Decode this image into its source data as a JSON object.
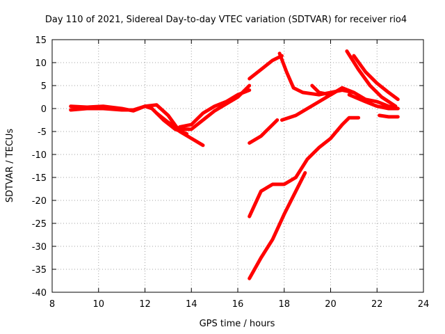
{
  "chart_data": {
    "type": "scatter",
    "title": "Day 110 of 2021, Sidereal Day-to-day VTEC variation (SDTVAR) for receiver rio4",
    "xlabel": "GPS time / hours",
    "ylabel": "SDTVAR / TECUs",
    "xlim": [
      8,
      24
    ],
    "ylim": [
      -40,
      15
    ],
    "xticks": [
      8,
      10,
      12,
      14,
      16,
      18,
      20,
      22,
      24
    ],
    "yticks": [
      -40,
      -35,
      -30,
      -25,
      -20,
      -15,
      -10,
      -5,
      0,
      5,
      10,
      15
    ],
    "grid": true,
    "legend": "none",
    "color": "#ff0000",
    "series": [
      {
        "x": [
          8.8,
          9.5,
          10.2,
          11.0,
          11.5,
          12.0,
          12.5,
          13.0,
          13.5,
          14.0,
          14.5
        ],
        "y": [
          0.5,
          0.3,
          0.5,
          0.0,
          -0.5,
          0.5,
          0.8,
          -1.5,
          -5.0,
          -6.5,
          -8.0
        ]
      },
      {
        "x": [
          8.8,
          9.5,
          10.2,
          11.0,
          11.5,
          12.0,
          12.3,
          12.8,
          13.3,
          13.8
        ],
        "y": [
          -0.3,
          0.0,
          0.0,
          -0.3,
          -0.3,
          0.5,
          0.0,
          -2.5,
          -4.5,
          -5.5
        ]
      },
      {
        "x": [
          12.5,
          13.0,
          13.5,
          14.0,
          14.5,
          15.0,
          15.5,
          16.0,
          16.5
        ],
        "y": [
          -1.0,
          -3.0,
          -4.5,
          -4.5,
          -2.5,
          -0.5,
          1.0,
          2.5,
          5.0
        ]
      },
      {
        "x": [
          13.5,
          14.0,
          14.5,
          15.0,
          15.5,
          16.0,
          16.5
        ],
        "y": [
          -4.0,
          -3.5,
          -1.0,
          0.5,
          1.5,
          3.0,
          4.0
        ]
      },
      {
        "x": [
          16.5,
          17.0,
          17.5,
          17.9
        ],
        "y": [
          6.5,
          8.5,
          10.5,
          11.5
        ]
      },
      {
        "x": [
          16.5,
          17.0,
          17.5,
          17.7
        ],
        "y": [
          -7.5,
          -6.0,
          -3.5,
          -2.5
        ]
      },
      {
        "x": [
          17.8,
          18.1,
          18.4,
          18.8,
          19.5,
          20.0,
          20.5,
          21.0
        ],
        "y": [
          12.0,
          8.0,
          4.5,
          3.5,
          3.0,
          3.5,
          4.0,
          3.5
        ]
      },
      {
        "x": [
          17.9,
          18.5,
          19.0,
          19.5,
          20.0,
          20.5
        ],
        "y": [
          -2.5,
          -1.5,
          0.0,
          1.5,
          3.0,
          4.5
        ]
      },
      {
        "x": [
          19.2,
          19.5,
          20.0,
          20.5,
          21.0,
          21.5,
          22.0,
          22.5,
          22.9
        ],
        "y": [
          5.0,
          3.5,
          3.0,
          4.5,
          3.5,
          2.0,
          1.5,
          0.5,
          0.0
        ]
      },
      {
        "x": [
          16.5,
          17.0,
          17.5,
          18.0,
          18.5,
          19.0,
          19.5,
          20.0,
          20.5,
          20.8,
          21.2
        ],
        "y": [
          -23.5,
          -18.0,
          -16.5,
          -16.5,
          -15.0,
          -11.0,
          -8.5,
          -6.5,
          -3.5,
          -2.0,
          -2.0
        ]
      },
      {
        "x": [
          16.5,
          17.0,
          17.5,
          18.0,
          18.5,
          18.9
        ],
        "y": [
          -37.0,
          -32.5,
          -28.5,
          -23.0,
          -18.0,
          -14.0
        ]
      },
      {
        "x": [
          20.7,
          21.2,
          21.7,
          22.2,
          22.8
        ],
        "y": [
          12.5,
          8.5,
          5.0,
          2.5,
          0.5
        ]
      },
      {
        "x": [
          21.0,
          21.5,
          22.0,
          22.5,
          22.9
        ],
        "y": [
          11.5,
          8.0,
          5.5,
          3.5,
          2.0
        ]
      },
      {
        "x": [
          20.8,
          21.5,
          22.0,
          22.5,
          22.9
        ],
        "y": [
          3.0,
          1.5,
          0.5,
          0.0,
          0.0
        ]
      },
      {
        "x": [
          22.1,
          22.5,
          22.9
        ],
        "y": [
          -1.5,
          -1.8,
          -1.8
        ]
      }
    ]
  }
}
